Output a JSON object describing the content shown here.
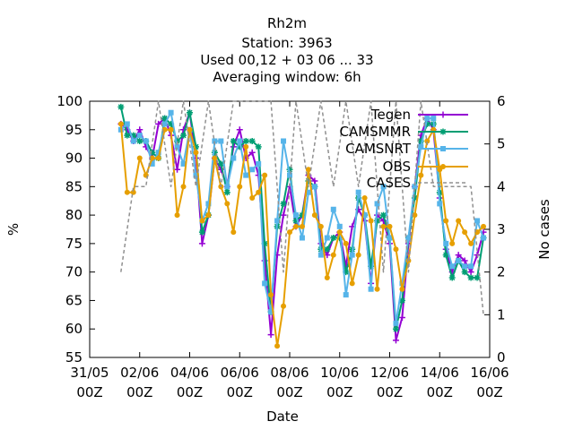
{
  "chart_data": {
    "type": "line",
    "title_lines": [
      "Rh2m",
      "Station:     3963",
      "Used  00,12  + 03 06 ... 33",
      "Averaging window:  6h"
    ],
    "xlabel": "Date",
    "ylabel": "%",
    "y2label": "No cases",
    "xlim": [
      0,
      16
    ],
    "ylim": [
      55,
      100
    ],
    "y2lim": [
      0,
      6
    ],
    "x_ticks": [
      {
        "v": 0,
        "l1": "31/05",
        "l2": "00Z"
      },
      {
        "v": 2,
        "l1": "02/06",
        "l2": "00Z"
      },
      {
        "v": 4,
        "l1": "04/06",
        "l2": "00Z"
      },
      {
        "v": 6,
        "l1": "06/06",
        "l2": "00Z"
      },
      {
        "v": 8,
        "l1": "08/06",
        "l2": "00Z"
      },
      {
        "v": 10,
        "l1": "10/06",
        "l2": "00Z"
      },
      {
        "v": 12,
        "l1": "12/06",
        "l2": "00Z"
      },
      {
        "v": 14,
        "l1": "14/06",
        "l2": "00Z"
      },
      {
        "v": 16,
        "l1": "16/06",
        "l2": "00Z"
      }
    ],
    "y_ticks": [
      55,
      60,
      65,
      70,
      75,
      80,
      85,
      90,
      95,
      100
    ],
    "y2_ticks": [
      0,
      1,
      2,
      3,
      4,
      5,
      6
    ],
    "legend_position": "top-right",
    "x": [
      1.25,
      1.5,
      1.75,
      2.0,
      2.25,
      2.5,
      2.75,
      3.0,
      3.25,
      3.5,
      3.75,
      4.0,
      4.25,
      4.5,
      4.75,
      5.0,
      5.25,
      5.5,
      5.75,
      6.0,
      6.25,
      6.5,
      6.75,
      7.0,
      7.25,
      7.5,
      7.75,
      8.0,
      8.25,
      8.5,
      8.75,
      9.0,
      9.25,
      9.5,
      9.75,
      10.0,
      10.25,
      10.5,
      10.75,
      11.0,
      11.25,
      11.5,
      11.75,
      12.0,
      12.25,
      12.5,
      12.75,
      13.0,
      13.25,
      13.5,
      13.75,
      14.0,
      14.25,
      14.5,
      14.75,
      15.0,
      15.25,
      15.5,
      15.75
    ],
    "series": [
      {
        "name": "Tegen",
        "color": "#9400d3",
        "marker": "plus",
        "values": [
          96,
          95,
          93,
          95,
          92,
          90,
          96,
          97,
          94,
          88,
          95,
          98,
          90,
          75,
          80,
          90,
          88,
          85,
          92,
          95,
          90,
          91,
          87,
          72,
          59,
          73,
          80,
          85,
          78,
          80,
          87,
          86,
          75,
          73,
          76,
          77,
          71,
          78,
          81,
          79,
          68,
          80,
          79,
          75,
          58,
          62,
          75,
          85,
          94,
          97,
          95,
          83,
          74,
          70,
          73,
          72,
          70,
          73,
          77
        ]
      },
      {
        "name": "CAMSMMR",
        "color": "#009e73",
        "marker": "star",
        "values": [
          99,
          94,
          94,
          93,
          93,
          91,
          90,
          97,
          96,
          93,
          94,
          98,
          92,
          77,
          80,
          91,
          89,
          84,
          93,
          92,
          93,
          93,
          92,
          75,
          63,
          78,
          82,
          88,
          79,
          80,
          86,
          85,
          74,
          74,
          76,
          76,
          70,
          74,
          83,
          80,
          71,
          79,
          80,
          76,
          60,
          65,
          76,
          83,
          93,
          96,
          96,
          84,
          73,
          69,
          72,
          70,
          69,
          69,
          76
        ]
      },
      {
        "name": "CAMSNRT",
        "color": "#56b4e9",
        "marker": "square",
        "values": [
          95,
          96,
          93,
          94,
          93,
          89,
          91,
          96,
          98,
          92,
          89,
          95,
          87,
          79,
          82,
          93,
          93,
          85,
          90,
          93,
          87,
          88,
          89,
          68,
          63,
          79,
          93,
          87,
          80,
          76,
          84,
          85,
          73,
          76,
          81,
          78,
          66,
          73,
          84,
          80,
          67,
          82,
          85,
          76,
          61,
          68,
          76,
          85,
          92,
          97,
          97,
          82,
          75,
          71,
          72,
          71,
          71,
          79,
          76
        ]
      },
      {
        "name": "OBS",
        "color": "#e69f00",
        "marker": "circle",
        "values": [
          96,
          84,
          84,
          90,
          87,
          90,
          90,
          95,
          95,
          80,
          85,
          95,
          91,
          79,
          80,
          90,
          85,
          82,
          77,
          85,
          92,
          83,
          84,
          87,
          66,
          57,
          64,
          77,
          78,
          78,
          88,
          80,
          78,
          69,
          73,
          77,
          75,
          68,
          73,
          83,
          79,
          67,
          78,
          78,
          74,
          67,
          72,
          80,
          87,
          93,
          95,
          88,
          79,
          75,
          79,
          77,
          75,
          77,
          78
        ]
      },
      {
        "name": "CASES",
        "color": "#909090",
        "marker": "none",
        "dashed": true,
        "axis": "y2",
        "x": [
          1.25,
          1.75,
          2.25,
          2.75,
          3.25,
          3.75,
          4.25,
          4.75,
          5.25,
          5.75,
          6.25,
          6.75,
          7.25,
          7.75,
          8.25,
          8.75,
          9.25,
          9.75,
          10.25,
          10.75,
          11.25,
          11.75,
          12.25,
          12.75,
          13.25,
          13.75,
          14.25,
          14.75,
          15.25,
          15.75
        ],
        "values": [
          2,
          4,
          4,
          6,
          4,
          6,
          4,
          6,
          4,
          6,
          6,
          6,
          6,
          2,
          6,
          4,
          6,
          4,
          6,
          4,
          6,
          2,
          6,
          2,
          6,
          4,
          4,
          4,
          4,
          1
        ]
      }
    ]
  }
}
